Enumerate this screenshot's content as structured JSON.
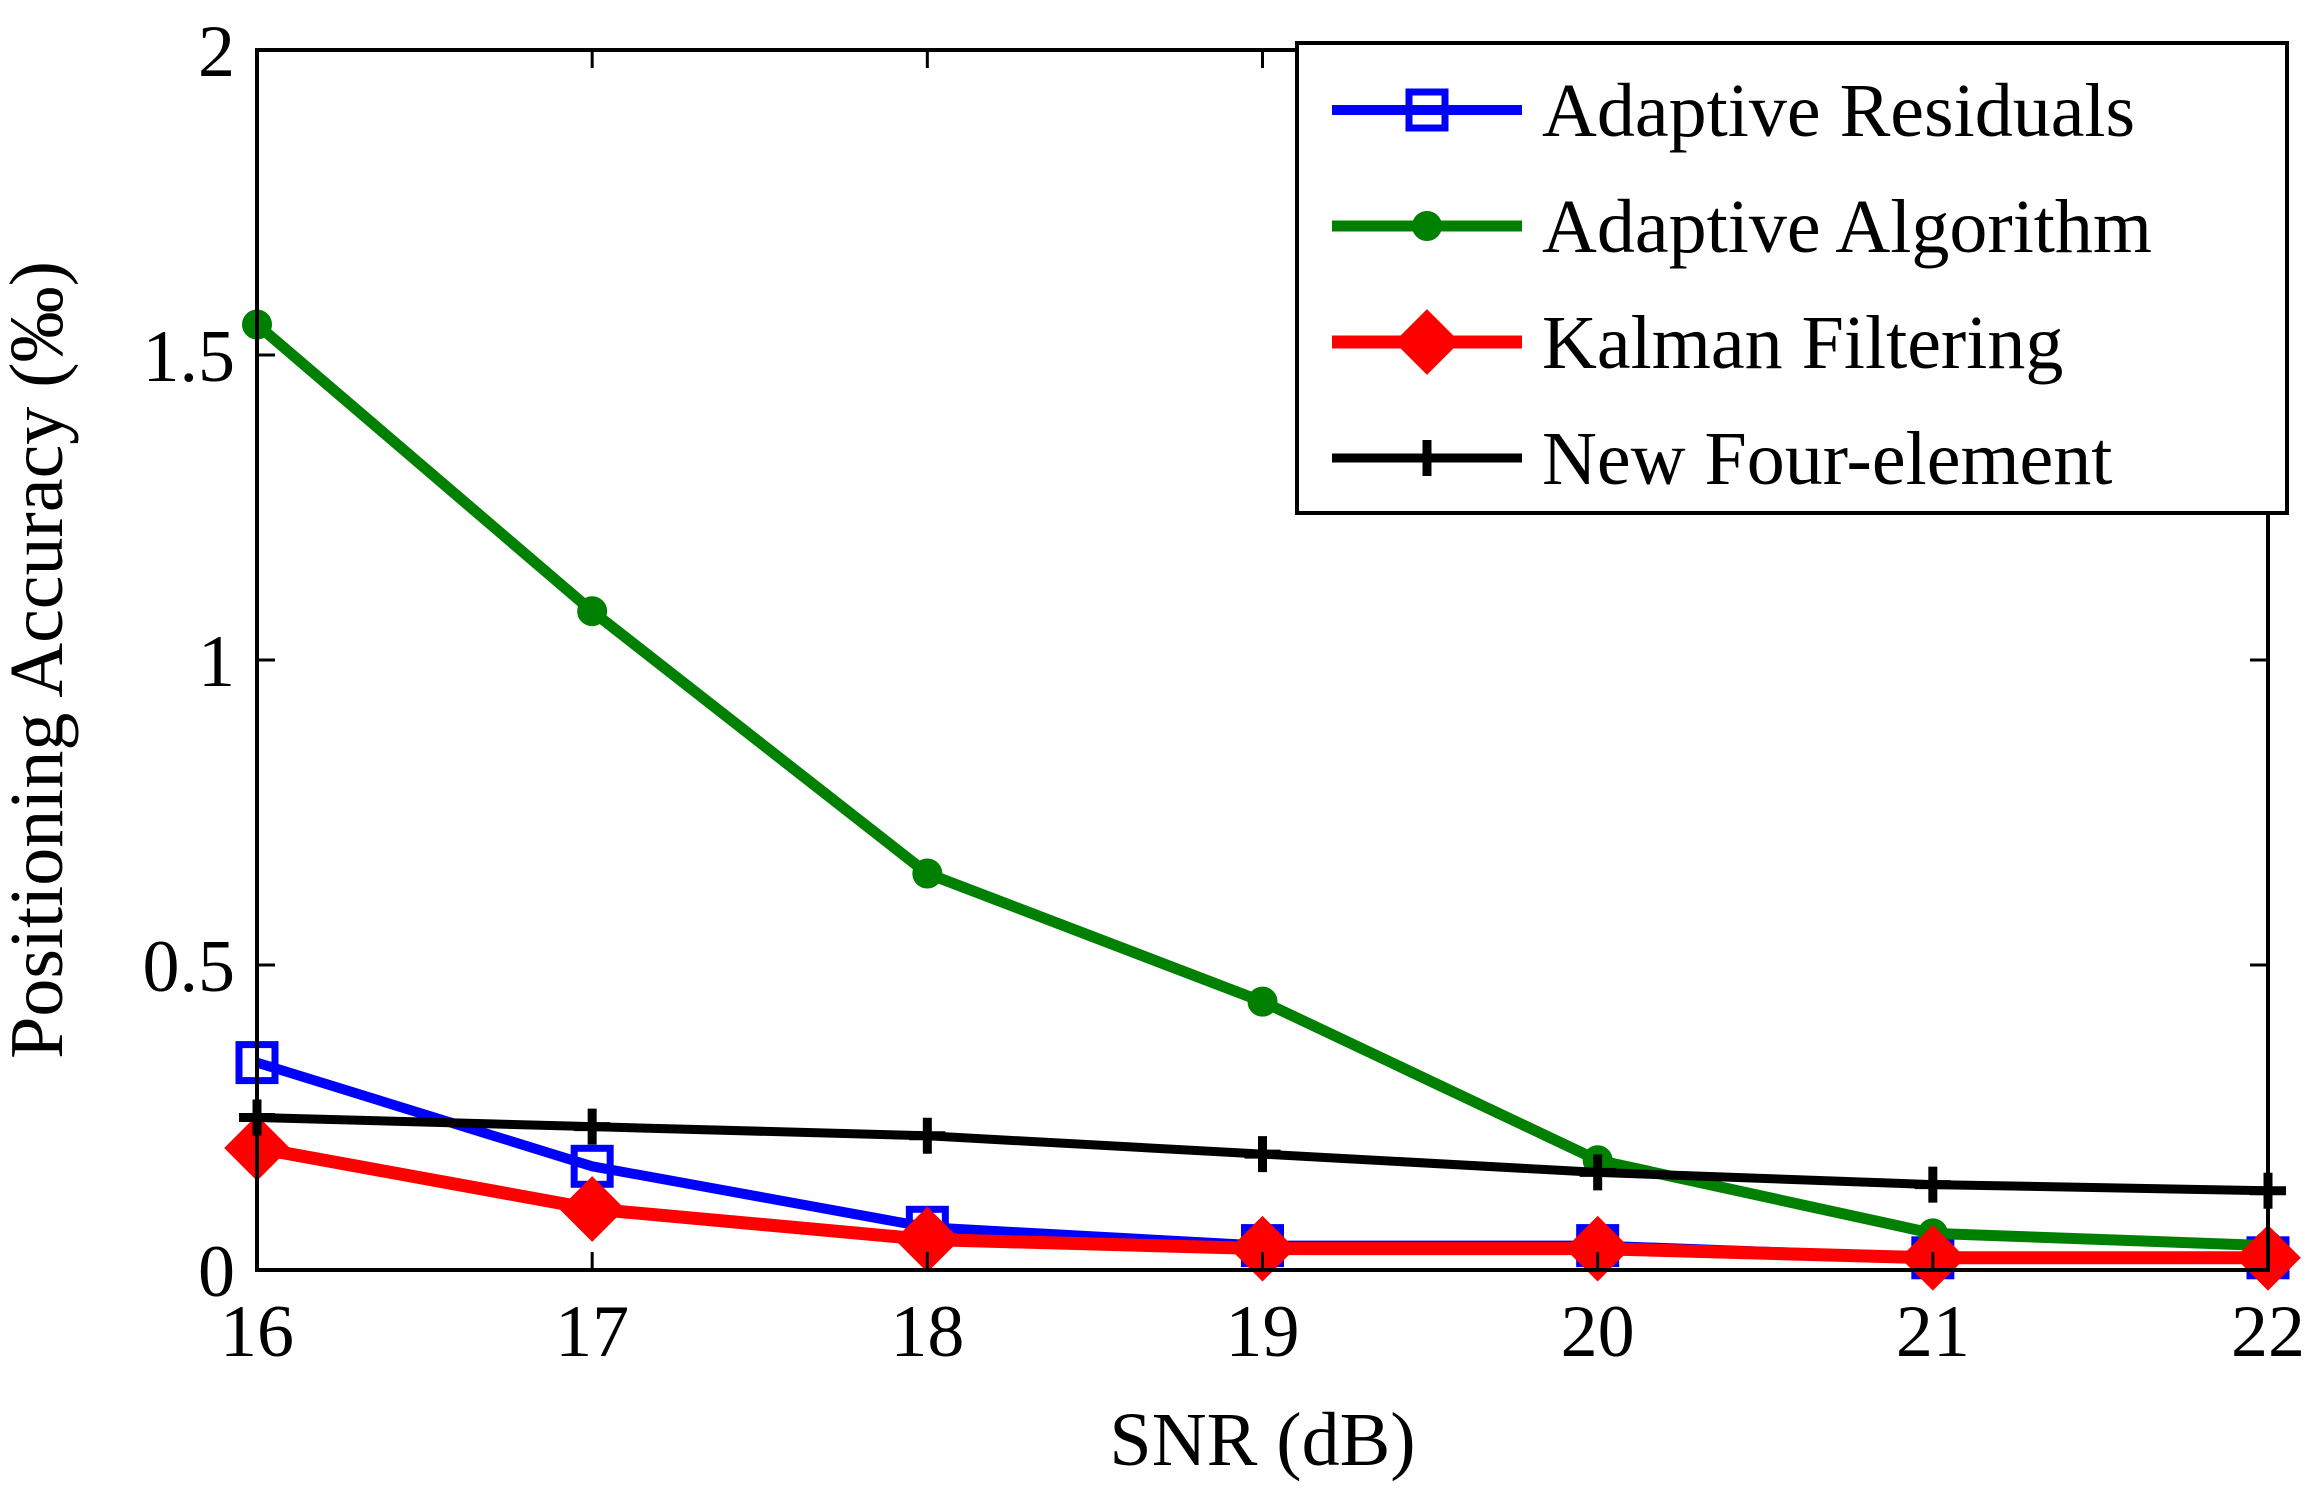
{
  "chart_data": {
    "type": "line",
    "title": "",
    "xlabel": "SNR (dB)",
    "ylabel": "Positioning Accuracy (‰)",
    "xlim": [
      16,
      22
    ],
    "ylim": [
      0,
      2
    ],
    "x": [
      16,
      17,
      18,
      19,
      20,
      21,
      22
    ],
    "xticks": [
      "16",
      "17",
      "18",
      "19",
      "20",
      "21",
      "22"
    ],
    "yticks": [
      {
        "value": 0,
        "label": "0"
      },
      {
        "value": 0.5,
        "label": "0.5"
      },
      {
        "value": 1,
        "label": "1"
      },
      {
        "value": 1.5,
        "label": "1.5"
      },
      {
        "value": 2,
        "label": "2"
      }
    ],
    "grid": false,
    "legend_position": "top-right",
    "series": [
      {
        "name": "Adaptive Residuals",
        "color": "#0000FF",
        "marker": "square",
        "values": [
          0.34,
          0.17,
          0.07,
          0.04,
          0.04,
          0.02,
          0.02
        ]
      },
      {
        "name": "Adaptive Algorithm",
        "color": "#008000",
        "marker": "circle",
        "values": [
          1.55,
          1.08,
          0.65,
          0.44,
          0.18,
          0.06,
          0.04
        ]
      },
      {
        "name": "Kalman Filtering",
        "color": "#FF0000",
        "marker": "diamond",
        "values": [
          0.2,
          0.1,
          0.05,
          0.035,
          0.035,
          0.02,
          0.02
        ]
      },
      {
        "name": "New Four-element",
        "color": "#000000",
        "marker": "plus",
        "values": [
          0.25,
          0.235,
          0.22,
          0.19,
          0.16,
          0.14,
          0.13
        ]
      }
    ]
  }
}
